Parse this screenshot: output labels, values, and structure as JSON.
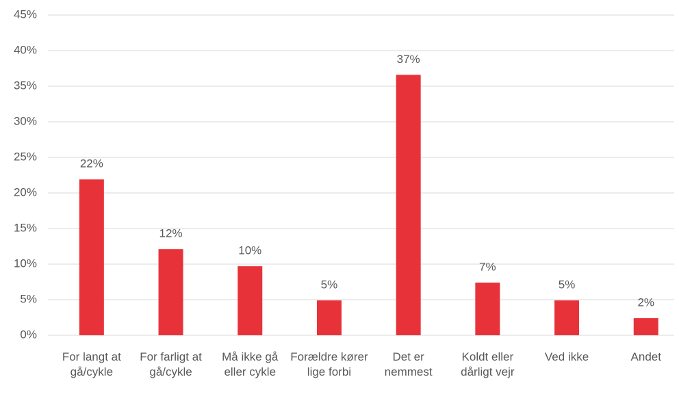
{
  "chart_data": {
    "type": "bar",
    "categories": [
      "For langt at gå/cykle",
      "For farligt at gå/cykle",
      "Må ikke gå eller cykle",
      "Forældre kører lige forbi",
      "Det er nemmest",
      "Koldt eller dårligt vejr",
      "Ved ikke",
      "Andet"
    ],
    "values": [
      21.9,
      12.1,
      9.7,
      4.9,
      36.6,
      7.4,
      4.9,
      2.4
    ],
    "value_labels": [
      "22%",
      "12%",
      "10%",
      "5%",
      "37%",
      "7%",
      "5%",
      "2%"
    ],
    "color": "#e8323a",
    "ylim": [
      0,
      45
    ],
    "yticks": [
      {
        "value": 0,
        "label": "0%"
      },
      {
        "value": 5,
        "label": "5%"
      },
      {
        "value": 10,
        "label": "10%"
      },
      {
        "value": 15,
        "label": "15%"
      },
      {
        "value": 20,
        "label": "20%"
      },
      {
        "value": 25,
        "label": "25%"
      },
      {
        "value": 30,
        "label": "30%"
      },
      {
        "value": 35,
        "label": "35%"
      },
      {
        "value": 40,
        "label": "40%"
      },
      {
        "value": 45,
        "label": "45%"
      }
    ],
    "grid": true
  }
}
